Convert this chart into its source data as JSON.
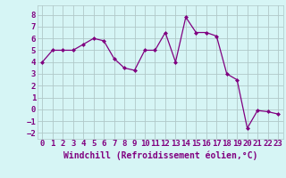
{
  "x": [
    0,
    1,
    2,
    3,
    4,
    5,
    6,
    7,
    8,
    9,
    10,
    11,
    12,
    13,
    14,
    15,
    16,
    17,
    18,
    19,
    20,
    21,
    22,
    23
  ],
  "y": [
    4.0,
    5.0,
    5.0,
    5.0,
    5.5,
    6.0,
    5.8,
    4.3,
    3.5,
    3.3,
    5.0,
    5.0,
    6.5,
    4.0,
    7.8,
    6.5,
    6.5,
    6.2,
    3.0,
    2.5,
    -1.6,
    -0.1,
    -0.2,
    -0.4
  ],
  "xlabel": "Windchill (Refroidissement éolien,°C)",
  "ylim": [
    -2.5,
    8.8
  ],
  "xlim": [
    -0.5,
    23.5
  ],
  "yticks": [
    -2,
    -1,
    0,
    1,
    2,
    3,
    4,
    5,
    6,
    7,
    8
  ],
  "xticks": [
    0,
    1,
    2,
    3,
    4,
    5,
    6,
    7,
    8,
    9,
    10,
    11,
    12,
    13,
    14,
    15,
    16,
    17,
    18,
    19,
    20,
    21,
    22,
    23
  ],
  "line_color": "#800080",
  "marker": "D",
  "marker_size": 2,
  "bg_color": "#d6f5f5",
  "grid_color": "#b0c8c8",
  "font_color": "#800080",
  "font_size": 6.5,
  "xlabel_fontsize": 7.0
}
